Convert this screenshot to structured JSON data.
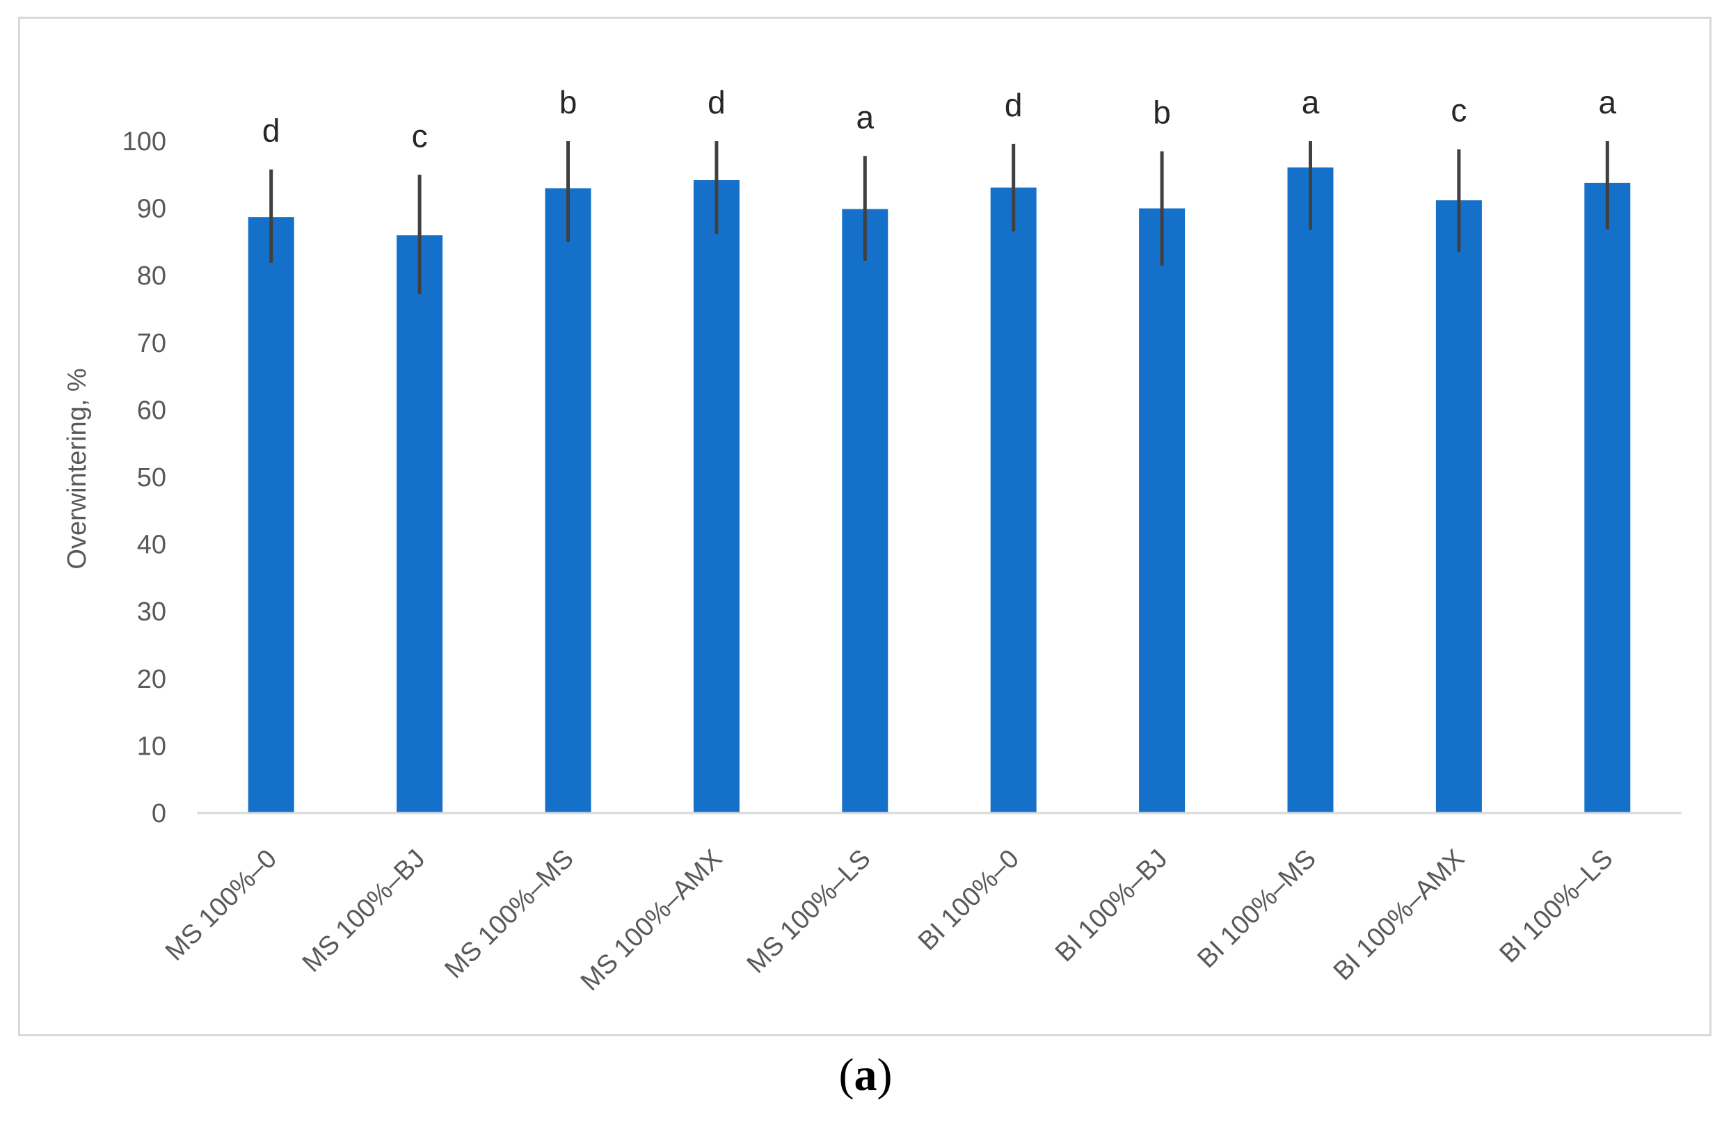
{
  "chart_data": {
    "type": "bar",
    "title": "",
    "xlabel": "",
    "ylabel": "Overwintering, %",
    "ylim": [
      0,
      100
    ],
    "yticks": [
      0,
      10,
      20,
      30,
      40,
      50,
      60,
      70,
      80,
      90,
      100
    ],
    "grid": false,
    "legend": "none",
    "categories": [
      "MS 100%–0",
      "MS 100%–BJ",
      "MS 100%–MS",
      "MS 100%–AMX",
      "MS 100%–LS",
      "BI 100%–0",
      "BI 100%–BJ",
      "BI 100%–MS",
      "BI 100%–AMX",
      "BI 100%–LS"
    ],
    "values": [
      88.7,
      86.0,
      93.0,
      94.2,
      89.9,
      93.1,
      90.0,
      96.1,
      91.2,
      93.8
    ],
    "error_bars": [
      [
        81.9,
        95.8
      ],
      [
        77.2,
        95.0
      ],
      [
        85.0,
        100.0
      ],
      [
        86.2,
        100.0
      ],
      [
        82.2,
        97.8
      ],
      [
        86.6,
        99.6
      ],
      [
        81.5,
        98.5
      ],
      [
        86.8,
        100.0
      ],
      [
        83.5,
        98.8
      ],
      [
        86.9,
        100.0
      ]
    ],
    "significance_letters": [
      "d",
      "c",
      "b",
      "d",
      "a",
      "d",
      "b",
      "a",
      "c",
      "a"
    ],
    "colors": {
      "bar": "#1570C9",
      "error_bar": "#404040",
      "axis_line": "#d9d9d9"
    }
  },
  "caption": {
    "open": "(",
    "letter": "a",
    "close": ")"
  }
}
